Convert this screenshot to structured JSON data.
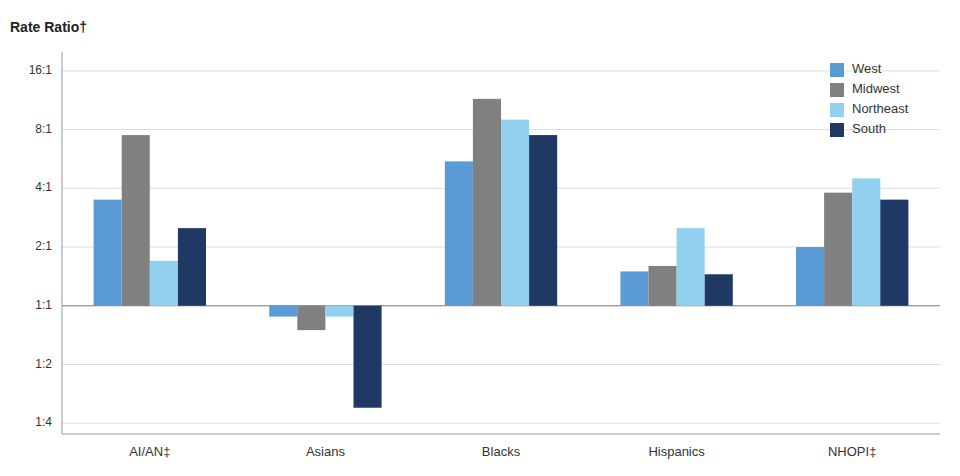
{
  "chart_data": {
    "type": "bar",
    "y_label": "Rate Ratio†",
    "categories": [
      "AI/AN‡",
      "Asians",
      "Blacks",
      "Hispanics",
      "NHOPI‡"
    ],
    "series": [
      {
        "name": "West",
        "color": "#5b9bd5",
        "values": [
          3.5,
          0.88,
          5.5,
          1.5,
          2.0
        ]
      },
      {
        "name": "Midwest",
        "color": "#808080",
        "values": [
          7.5,
          0.75,
          11.5,
          1.6,
          3.8
        ]
      },
      {
        "name": "Northeast",
        "color": "#92d0f0",
        "values": [
          1.7,
          0.88,
          9.0,
          2.5,
          4.5
        ]
      },
      {
        "name": "South",
        "color": "#1f3864",
        "values": [
          2.5,
          0.3,
          7.5,
          1.45,
          3.5
        ]
      }
    ],
    "log": "y",
    "ylim": [
      0.22,
      20
    ],
    "yticks": [
      {
        "value": 16,
        "label": "16:1"
      },
      {
        "value": 8,
        "label": "8:1"
      },
      {
        "value": 4,
        "label": "4:1"
      },
      {
        "value": 2,
        "label": "2:1"
      },
      {
        "value": 1,
        "label": "1:1"
      },
      {
        "value": 0.5,
        "label": "1:2"
      },
      {
        "value": 0.25,
        "label": "1:4"
      }
    ],
    "grid": true,
    "legend": "upper right"
  }
}
